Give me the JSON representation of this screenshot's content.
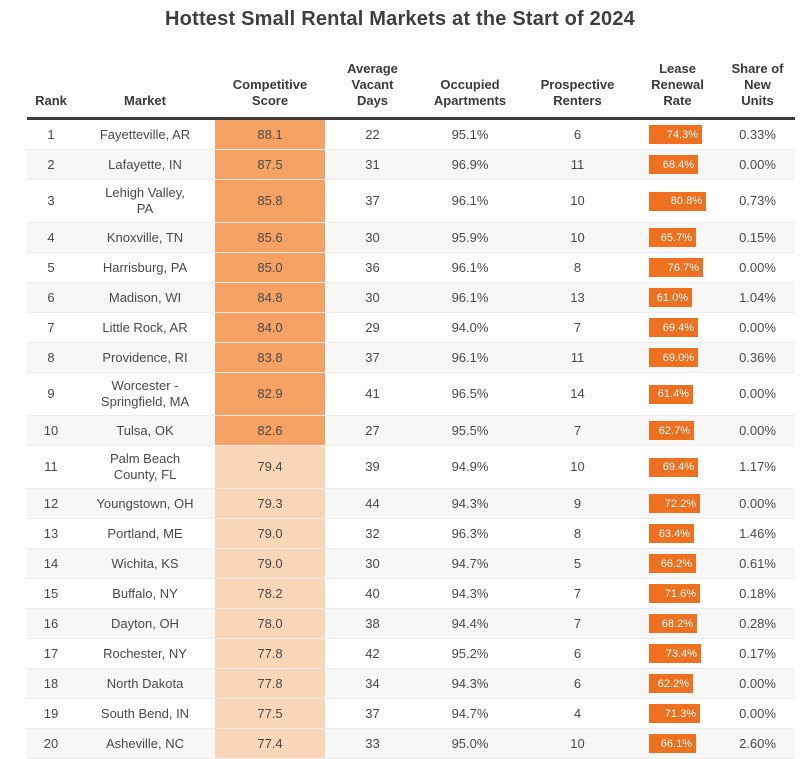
{
  "chart_data": {
    "type": "table",
    "title": "Hottest Small Rental Markets at the Start of 2024",
    "columns": [
      "Rank",
      "Market",
      "Competitive\nScore",
      "Average\nVacant\nDays",
      "Occupied\nApartments",
      "Prospective\nRenters",
      "Lease\nRenewal\nRate",
      "Share of\nNew\nUnits"
    ],
    "rows": [
      {
        "rank": "1",
        "market": "Fayetteville, AR",
        "competitive_score": "88.1",
        "avg_vacant_days": "22",
        "occupied_apartments": "95.1%",
        "prospective_renters": "6",
        "lease_renewal_rate": "74.3%",
        "share_of_new_units": "0.33%"
      },
      {
        "rank": "2",
        "market": "Lafayette, IN",
        "competitive_score": "87.5",
        "avg_vacant_days": "31",
        "occupied_apartments": "96.9%",
        "prospective_renters": "11",
        "lease_renewal_rate": "68.4%",
        "share_of_new_units": "0.00%"
      },
      {
        "rank": "3",
        "market": "Lehigh Valley,\nPA",
        "competitive_score": "85.8",
        "avg_vacant_days": "37",
        "occupied_apartments": "96.1%",
        "prospective_renters": "10",
        "lease_renewal_rate": "80.8%",
        "share_of_new_units": "0.73%"
      },
      {
        "rank": "4",
        "market": "Knoxville, TN",
        "competitive_score": "85.6",
        "avg_vacant_days": "30",
        "occupied_apartments": "95.9%",
        "prospective_renters": "10",
        "lease_renewal_rate": "65.7%",
        "share_of_new_units": "0.15%"
      },
      {
        "rank": "5",
        "market": "Harrisburg, PA",
        "competitive_score": "85.0",
        "avg_vacant_days": "36",
        "occupied_apartments": "96.1%",
        "prospective_renters": "8",
        "lease_renewal_rate": "76.7%",
        "share_of_new_units": "0.00%"
      },
      {
        "rank": "6",
        "market": "Madison, WI",
        "competitive_score": "84.8",
        "avg_vacant_days": "30",
        "occupied_apartments": "96.1%",
        "prospective_renters": "13",
        "lease_renewal_rate": "61.0%",
        "share_of_new_units": "1.04%"
      },
      {
        "rank": "7",
        "market": "Little Rock, AR",
        "competitive_score": "84.0",
        "avg_vacant_days": "29",
        "occupied_apartments": "94.0%",
        "prospective_renters": "7",
        "lease_renewal_rate": "69.4%",
        "share_of_new_units": "0.00%"
      },
      {
        "rank": "8",
        "market": "Providence, RI",
        "competitive_score": "83.8",
        "avg_vacant_days": "37",
        "occupied_apartments": "96.1%",
        "prospective_renters": "11",
        "lease_renewal_rate": "69.0%",
        "share_of_new_units": "0.36%"
      },
      {
        "rank": "9",
        "market": "Worcester -\nSpringfield, MA",
        "competitive_score": "82.9",
        "avg_vacant_days": "41",
        "occupied_apartments": "96.5%",
        "prospective_renters": "14",
        "lease_renewal_rate": "61.4%",
        "share_of_new_units": "0.00%"
      },
      {
        "rank": "10",
        "market": "Tulsa, OK",
        "competitive_score": "82.6",
        "avg_vacant_days": "27",
        "occupied_apartments": "95.5%",
        "prospective_renters": "7",
        "lease_renewal_rate": "62.7%",
        "share_of_new_units": "0.00%"
      },
      {
        "rank": "11",
        "market": "Palm Beach\nCounty, FL",
        "competitive_score": "79.4",
        "avg_vacant_days": "39",
        "occupied_apartments": "94.9%",
        "prospective_renters": "10",
        "lease_renewal_rate": "69.4%",
        "share_of_new_units": "1.17%"
      },
      {
        "rank": "12",
        "market": "Youngstown, OH",
        "competitive_score": "79.3",
        "avg_vacant_days": "44",
        "occupied_apartments": "94.3%",
        "prospective_renters": "9",
        "lease_renewal_rate": "72.2%",
        "share_of_new_units": "0.00%"
      },
      {
        "rank": "13",
        "market": "Portland, ME",
        "competitive_score": "79.0",
        "avg_vacant_days": "32",
        "occupied_apartments": "96.3%",
        "prospective_renters": "8",
        "lease_renewal_rate": "63.4%",
        "share_of_new_units": "1.46%"
      },
      {
        "rank": "14",
        "market": "Wichita, KS",
        "competitive_score": "79.0",
        "avg_vacant_days": "30",
        "occupied_apartments": "94.7%",
        "prospective_renters": "5",
        "lease_renewal_rate": "66.2%",
        "share_of_new_units": "0.61%"
      },
      {
        "rank": "15",
        "market": "Buffalo, NY",
        "competitive_score": "78.2",
        "avg_vacant_days": "40",
        "occupied_apartments": "94.3%",
        "prospective_renters": "7",
        "lease_renewal_rate": "71.6%",
        "share_of_new_units": "0.18%"
      },
      {
        "rank": "16",
        "market": "Dayton, OH",
        "competitive_score": "78.0",
        "avg_vacant_days": "38",
        "occupied_apartments": "94.4%",
        "prospective_renters": "7",
        "lease_renewal_rate": "68.2%",
        "share_of_new_units": "0.28%"
      },
      {
        "rank": "17",
        "market": "Rochester, NY",
        "competitive_score": "77.8",
        "avg_vacant_days": "42",
        "occupied_apartments": "95.2%",
        "prospective_renters": "6",
        "lease_renewal_rate": "73.4%",
        "share_of_new_units": "0.17%"
      },
      {
        "rank": "18",
        "market": "North Dakota",
        "competitive_score": "77.8",
        "avg_vacant_days": "34",
        "occupied_apartments": "94.3%",
        "prospective_renters": "6",
        "lease_renewal_rate": "62.2%",
        "share_of_new_units": "0.00%"
      },
      {
        "rank": "19",
        "market": "South Bend, IN",
        "competitive_score": "77.5",
        "avg_vacant_days": "37",
        "occupied_apartments": "94.7%",
        "prospective_renters": "4",
        "lease_renewal_rate": "71.3%",
        "share_of_new_units": "0.00%"
      },
      {
        "rank": "20",
        "market": "Asheville, NC",
        "competitive_score": "77.4",
        "avg_vacant_days": "33",
        "occupied_apartments": "95.0%",
        "prospective_renters": "10",
        "lease_renewal_rate": "66.1%",
        "share_of_new_units": "2.60%"
      }
    ],
    "score_band_rule": "scores 80 and above use the darker orange band; below 80 use the lighter band",
    "renewal_bar_note": "lease renewal rate badges are orange bars whose width is proportional to the percentage, value right-aligned in white"
  },
  "colors": {
    "score_band_top10": "#F5A264",
    "score_band_bottom10": "#FAD6B8",
    "renewal_badge": "#EF701E",
    "row_stripe": "#F7F7F7",
    "header_rule": "#3D3D3D",
    "title_text": "#3F3F3F",
    "body_text": "#4A4A4A"
  }
}
